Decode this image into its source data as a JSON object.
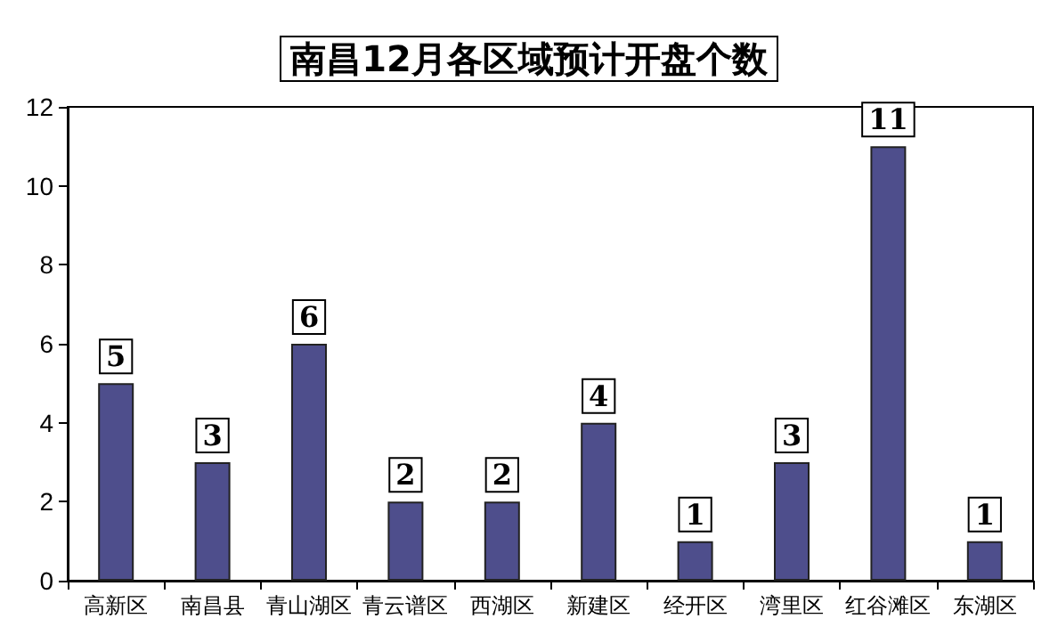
{
  "chart_data": {
    "type": "bar",
    "title": "南昌12月各区域预计开盘个数",
    "categories": [
      "高新区",
      "南昌县",
      "青山湖区",
      "青云谱区",
      "西湖区",
      "新建区",
      "经开区",
      "湾里区",
      "红谷滩区",
      "东湖区"
    ],
    "values": [
      5,
      3,
      6,
      2,
      2,
      4,
      1,
      3,
      11,
      1
    ],
    "color": "#4e4e8c",
    "ylim": [
      0,
      12
    ],
    "yticks": [
      0,
      2,
      4,
      6,
      8,
      10,
      12
    ],
    "grid": false,
    "data_labels": true
  }
}
